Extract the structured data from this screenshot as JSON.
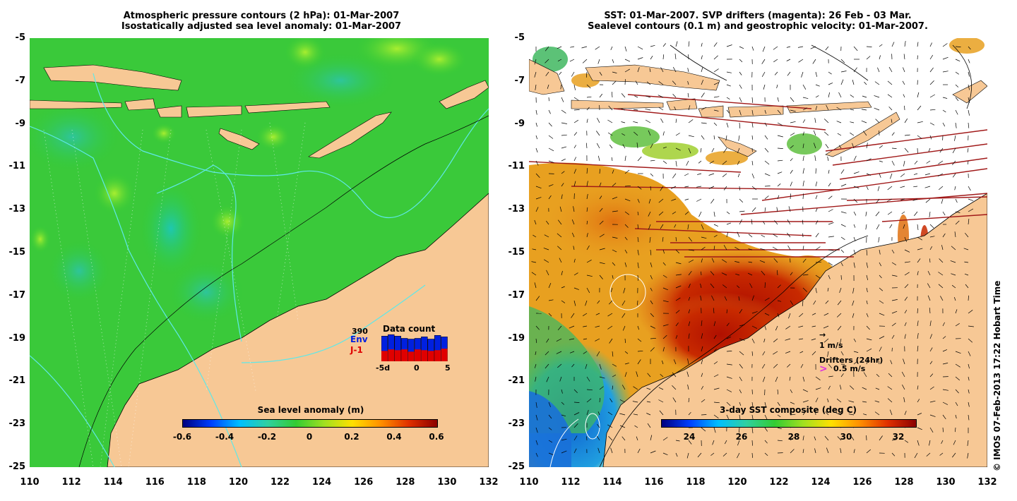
{
  "left_panel": {
    "title_line1": "Atmospheric pressure contours (2 hPa): 01-Mar-2007",
    "title_line2": "Isostatically adjusted sea level anomaly: 01-Mar-2007",
    "colorbar_title": "Sea level anomaly (m)",
    "colorbar_ticks": [
      "-0.6",
      "-0.4",
      "-0.2",
      "0",
      "0.2",
      "0.4",
      "0.6"
    ],
    "colors": {
      "ocean": "#33cc33",
      "land": "#f7c895",
      "contour": "#5fe8e8"
    },
    "inset": {
      "count": "390",
      "env_label": "Env",
      "j1_label": "J-1",
      "title": "Data count",
      "xticks": [
        "-5d",
        "0",
        "5"
      ],
      "env_counts": [
        34,
        36,
        34,
        31,
        30,
        31,
        33,
        30,
        35,
        33
      ],
      "j1_counts": [
        14,
        16,
        15,
        16,
        13,
        16,
        15,
        14,
        15,
        17
      ]
    }
  },
  "right_panel": {
    "title_line1": "SST: 01-Mar-2007. SVP drifters (magenta): 26 Feb - 03 Mar.",
    "title_line2": "Sealevel contours (0.1 m) and geostrophic velocity: 01-Mar-2007.",
    "colorbar_title": "3-day SST composite (deg C)",
    "colorbar_ticks": [
      "24",
      "26",
      "28",
      "30",
      "32"
    ],
    "vector_scale_label": "1 m/s",
    "drifters_label": "Drifters (24hr)",
    "drifters_scale": "0.5 m/s",
    "colors": {
      "sst_warm": "#c41a00",
      "sst_mid": "#e08010",
      "sst_cool": "#2080e0",
      "land": "#f7c895",
      "drifter_track": "#a01818"
    }
  },
  "axes": {
    "x_ticks": [
      "110",
      "112",
      "114",
      "116",
      "118",
      "120",
      "122",
      "124",
      "126",
      "128",
      "130",
      "132"
    ],
    "y_ticks": [
      "-5",
      "-7",
      "-9",
      "-11",
      "-13",
      "-15",
      "-17",
      "-19",
      "-21",
      "-23",
      "-25"
    ]
  },
  "credit": "© IMOS 07-Feb-2013 17:22 Hobart Time"
}
